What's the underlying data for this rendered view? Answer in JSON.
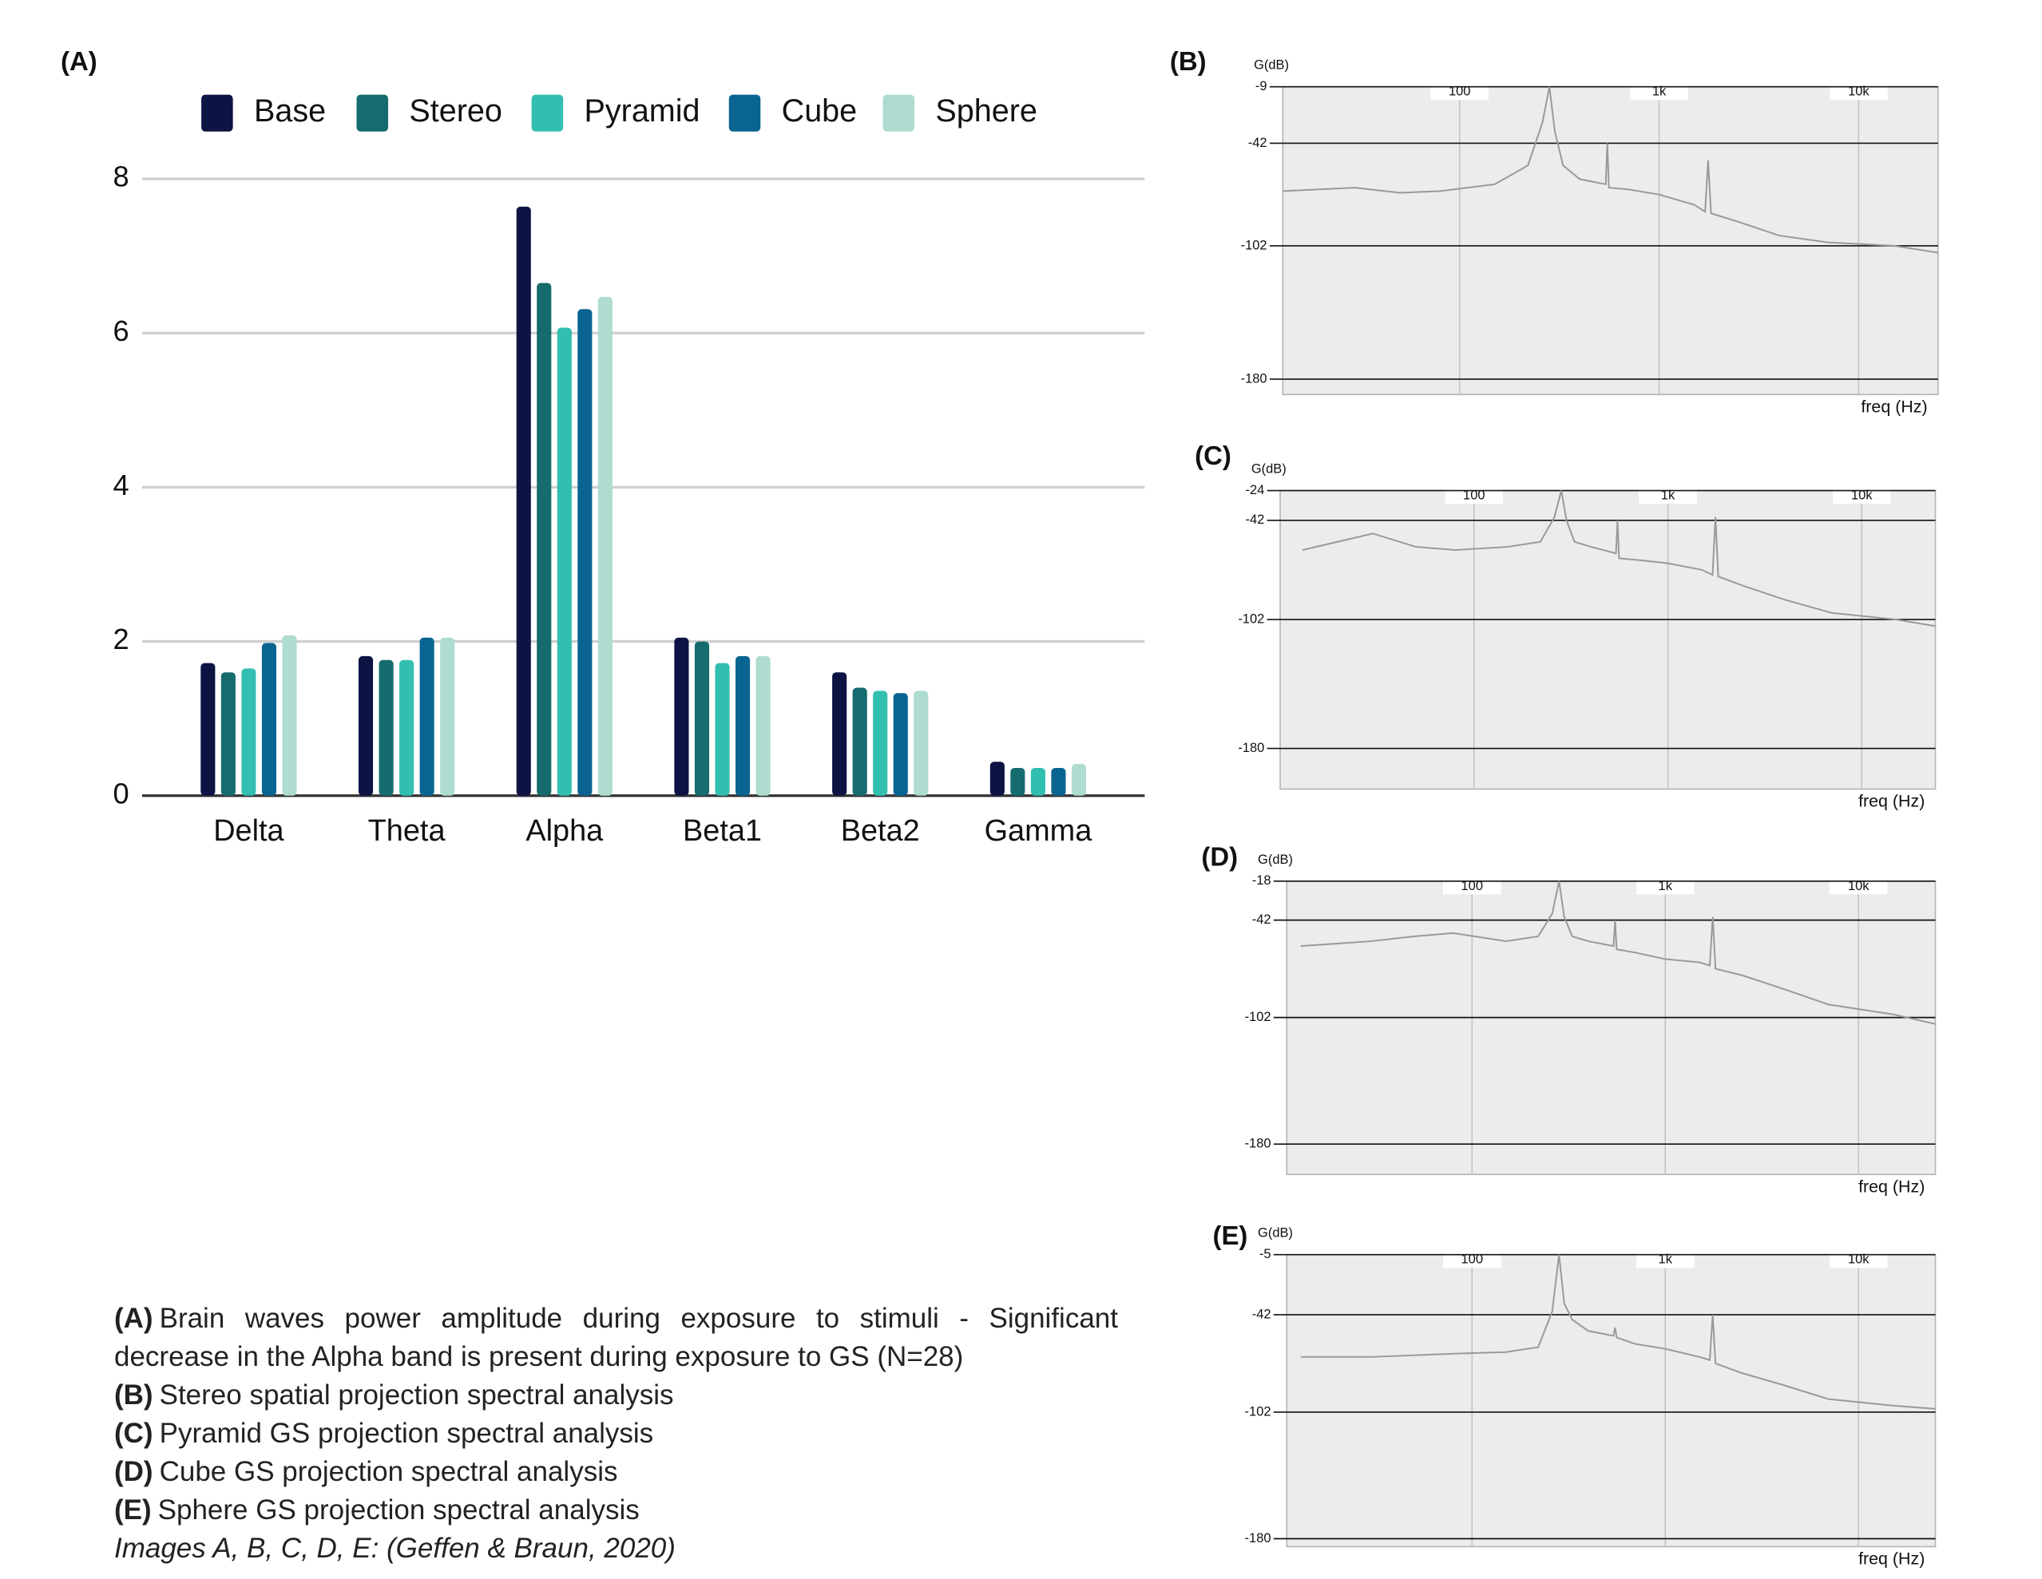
{
  "chart_data": [
    {
      "type": "bar",
      "title": "(A)",
      "categories": [
        "Delta",
        "Theta",
        "Alpha",
        "Beta1",
        "Beta2",
        "Gamma"
      ],
      "series": [
        {
          "name": "Base",
          "color": "#0d1444",
          "values": [
            1.72,
            1.81,
            7.64,
            2.05,
            1.6,
            0.44
          ]
        },
        {
          "name": "Stereo",
          "color": "#156b6e",
          "values": [
            1.6,
            1.76,
            6.65,
            2.0,
            1.4,
            0.36
          ]
        },
        {
          "name": "Pyramid",
          "color": "#33bfb0",
          "values": [
            1.65,
            1.76,
            6.07,
            1.72,
            1.36,
            0.36
          ]
        },
        {
          "name": "Cube",
          "color": "#0a6491",
          "values": [
            1.98,
            2.05,
            6.31,
            1.81,
            1.33,
            0.36
          ]
        },
        {
          "name": "Sphere",
          "color": "#aedcd0",
          "values": [
            2.08,
            2.05,
            6.47,
            1.81,
            1.36,
            0.41
          ]
        }
      ],
      "ylim": [
        0,
        8
      ],
      "yticks": [
        0,
        2,
        4,
        6,
        8
      ],
      "grid": true
    },
    {
      "type": "line",
      "title": "(B)",
      "y_label": "G(dB)",
      "x_label": "freq (Hz)",
      "xscale": "log",
      "color": "#999999",
      "xlim": [
        13,
        25000
      ],
      "xticks": [
        100,
        {
          "value": 1000,
          "label": "1k"
        },
        {
          "value": 10000,
          "label": "10k"
        }
      ],
      "ylim": [
        -189,
        -9
      ],
      "yticks": [
        -9,
        -42,
        -102,
        -180
      ],
      "x": [
        13,
        30,
        50,
        80,
        150,
        220,
        260,
        282,
        300,
        330,
        400,
        540,
        550,
        560,
        700,
        1000,
        1500,
        1700,
        1760,
        1820,
        2500,
        4000,
        7000,
        15000,
        25000
      ],
      "values": [
        -70,
        -68,
        -71,
        -70,
        -66,
        -55,
        -30,
        -9,
        -35,
        -55,
        -63,
        -66,
        -42,
        -68,
        -69,
        -72,
        -78,
        -82,
        -52,
        -83,
        -88,
        -96,
        -100,
        -102,
        -106
      ]
    },
    {
      "type": "line",
      "title": "(C)",
      "y_label": "G(dB)",
      "x_label": "freq (Hz)",
      "xscale": "log",
      "color": "#999999",
      "xlim": [
        10,
        24000
      ],
      "xticks": [
        100,
        {
          "value": 1000,
          "label": "1k"
        },
        {
          "value": 10000,
          "label": "10k"
        }
      ],
      "ylim": [
        -204.6,
        -24
      ],
      "yticks": [
        -24,
        -42,
        -102,
        -180
      ],
      "x": [
        13,
        30,
        50,
        80,
        150,
        220,
        260,
        282,
        300,
        330,
        400,
        540,
        550,
        560,
        700,
        1000,
        1500,
        1700,
        1760,
        1820,
        2500,
        4000,
        7000,
        15000,
        24000
      ],
      "values": [
        -60,
        -50,
        -58,
        -60,
        -58,
        -55,
        -40,
        -24,
        -42,
        -55,
        -58,
        -62,
        -42,
        -65,
        -66,
        -68,
        -72,
        -75,
        -40,
        -76,
        -82,
        -90,
        -98,
        -102,
        -106
      ]
    },
    {
      "type": "line",
      "title": "(D)",
      "y_label": "G(dB)",
      "x_label": "freq (Hz)",
      "xscale": "log",
      "color": "#999999",
      "xlim": [
        11,
        25000
      ],
      "xticks": [
        100,
        {
          "value": 1000,
          "label": "1k"
        },
        {
          "value": 10000,
          "label": "10k"
        }
      ],
      "ylim": [
        -198.7,
        -18
      ],
      "yticks": [
        -18,
        -42,
        -102,
        -180
      ],
      "x": [
        13,
        30,
        50,
        80,
        150,
        220,
        260,
        282,
        300,
        330,
        400,
        540,
        550,
        560,
        700,
        1000,
        1500,
        1700,
        1760,
        1820,
        2500,
        4000,
        7000,
        15000,
        25000
      ],
      "values": [
        -58,
        -55,
        -52,
        -50,
        -55,
        -52,
        -38,
        -18,
        -40,
        -52,
        -55,
        -58,
        -42,
        -60,
        -62,
        -66,
        -68,
        -70,
        -40,
        -72,
        -76,
        -84,
        -94,
        -100,
        -106
      ]
    },
    {
      "type": "line",
      "title": "(E)",
      "y_label": "G(dB)",
      "x_label": "freq (Hz)",
      "xscale": "log",
      "color": "#999999",
      "xlim": [
        11,
        25000
      ],
      "xticks": [
        100,
        {
          "value": 1000,
          "label": "1k"
        },
        {
          "value": 10000,
          "label": "10k"
        }
      ],
      "ylim": [
        -184.9,
        -5
      ],
      "yticks": [
        -5,
        -42,
        -102,
        -180
      ],
      "x": [
        13,
        30,
        50,
        80,
        150,
        220,
        260,
        282,
        300,
        330,
        400,
        540,
        550,
        560,
        700,
        1000,
        1500,
        1700,
        1760,
        1820,
        2500,
        4000,
        7000,
        15000,
        25000
      ],
      "values": [
        -68,
        -68,
        -67,
        -66,
        -65,
        -62,
        -40,
        -5,
        -35,
        -45,
        -52,
        -55,
        -50,
        -56,
        -60,
        -63,
        -68,
        -70,
        -42,
        -72,
        -78,
        -85,
        -94,
        -98,
        -100
      ]
    }
  ],
  "caption": {
    "items": [
      {
        "label": "(A)",
        "text": "Brain waves power amplitude during exposure to stimuli - Significant decrease in the Alpha band is present during exposure to GS (N=28)"
      },
      {
        "label": "(B)",
        "text": "Stereo spatial projection spectral analysis"
      },
      {
        "label": "(C)",
        "text": "Pyramid GS projection spectral analysis"
      },
      {
        "label": "(D)",
        "text": "Cube GS projection spectral analysis"
      },
      {
        "label": "(E)",
        "text": "Sphere GS projection spectral analysis"
      }
    ],
    "source": "Images A, B, C, D, E: (Geffen & Braun, 2020)"
  }
}
